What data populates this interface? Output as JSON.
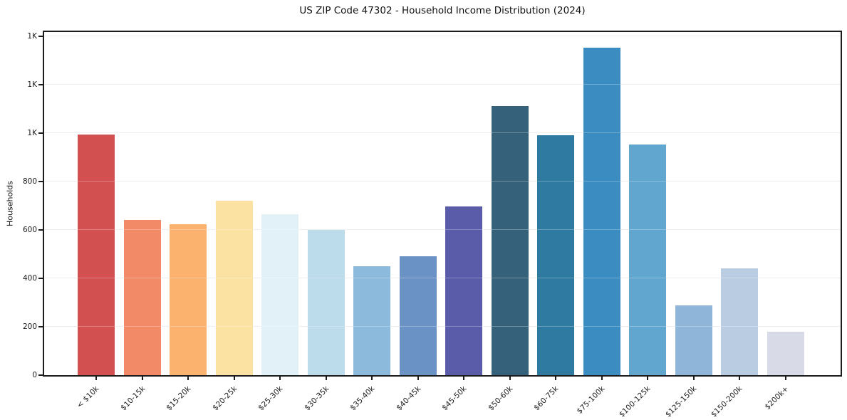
{
  "page_title": "US ZIP Code 47302 - Household Income Distribution (2024)",
  "chart_data": {
    "type": "bar",
    "title": "US ZIP Code 47302 - Household Income Distribution (2024)",
    "xlabel": "",
    "ylabel": "Households",
    "categories": [
      "< $10k",
      "$10-15k",
      "$15-20k",
      "$20-25k",
      "$25-30k",
      "$30-35k",
      "$35-40k",
      "$40-45k",
      "$45-50k",
      "$50-60k",
      "$60-75k",
      "$75-100k",
      "$100-125k",
      "$125-150k",
      "$150-200k",
      "$200k+"
    ],
    "values": [
      995,
      640,
      625,
      720,
      665,
      600,
      450,
      490,
      698,
      1112,
      990,
      1352,
      953,
      289,
      441,
      180
    ],
    "bar_colors": [
      "#d25050",
      "#f28a68",
      "#fab26e",
      "#fce2a2",
      "#e2f0f7",
      "#bcdcec",
      "#8cbadc",
      "#6a92c4",
      "#5a5caa",
      "#35617b",
      "#2f7aa0",
      "#3a8cc1",
      "#61a6ce",
      "#8fb6d8",
      "#b9cce1",
      "#d8dae7"
    ],
    "ylim": [
      0,
      1418
    ],
    "yticks": [
      {
        "value": 0,
        "label": "0"
      },
      {
        "value": 200,
        "label": "200"
      },
      {
        "value": 400,
        "label": "400"
      },
      {
        "value": 600,
        "label": "600"
      },
      {
        "value": 800,
        "label": "800"
      },
      {
        "value": 1000,
        "label": "1K"
      },
      {
        "value": 1200,
        "label": "1K"
      },
      {
        "value": 1400,
        "label": "1K"
      }
    ],
    "grid": "horizontal",
    "legend_position": "none",
    "style_colors": {
      "grid": "#e8e8e8",
      "spine": "#1c1c1c",
      "text": "#1a1a1a",
      "background": "#ffffff"
    }
  }
}
